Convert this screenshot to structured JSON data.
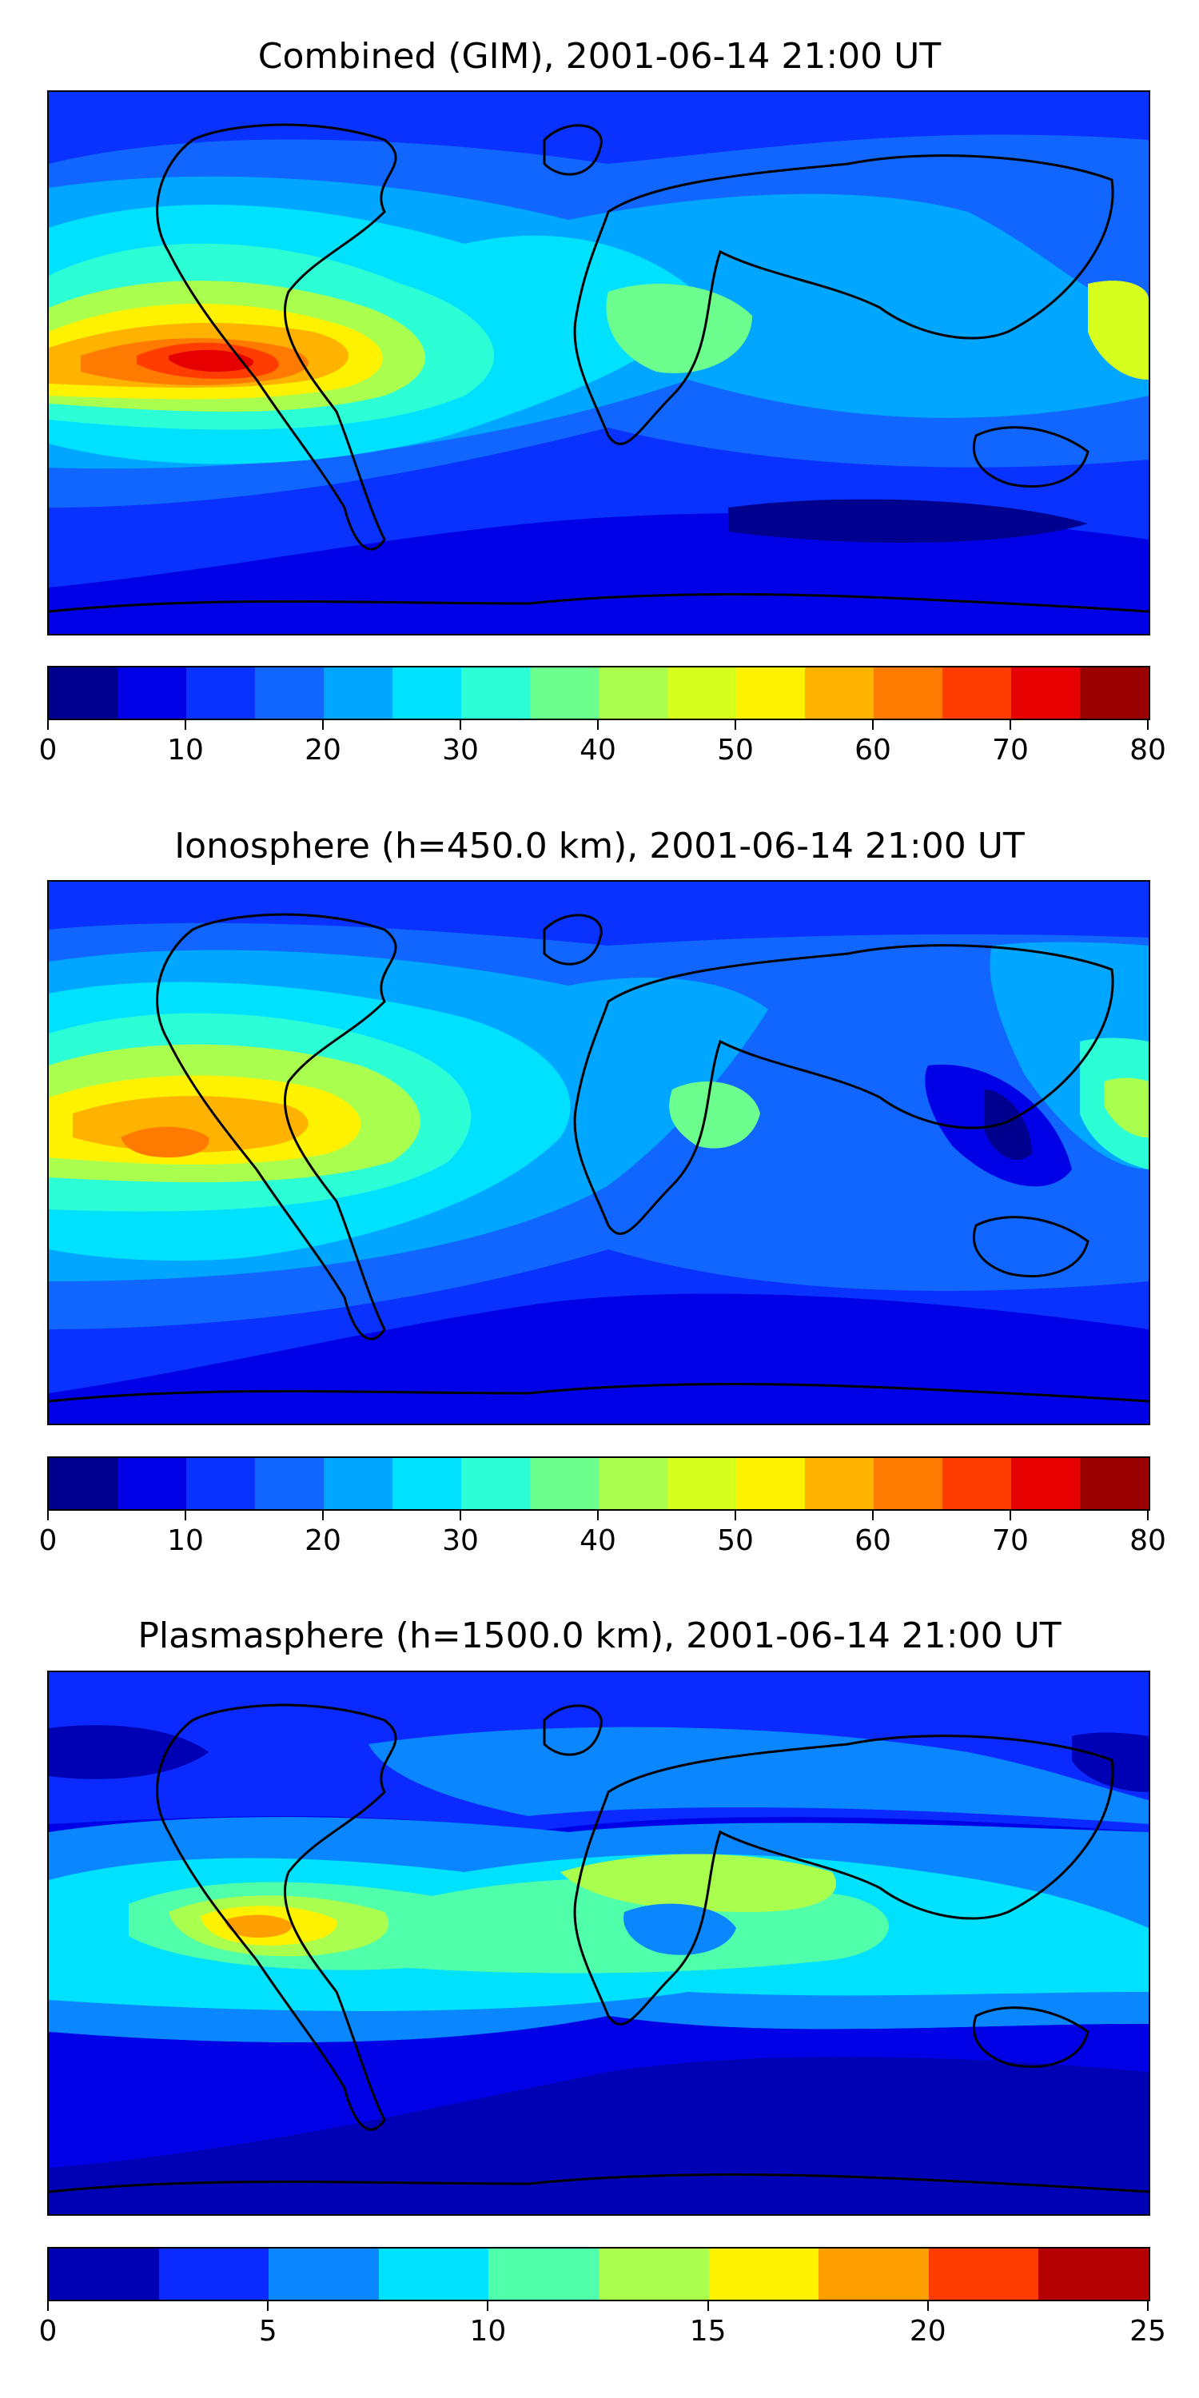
{
  "panels": [
    {
      "title": "Combined (GIM), 2001-06-14 21:00 UT",
      "map_background": "#0a32ff",
      "colorbar": {
        "min": 0,
        "max": 80,
        "colors": [
          "#00008f",
          "#0000e6",
          "#0a32ff",
          "#1066ff",
          "#00a6ff",
          "#00e1ff",
          "#2cffd6",
          "#6cff8e",
          "#aaff4e",
          "#d7ff1e",
          "#fff200",
          "#ffb300",
          "#ff7a00",
          "#ff3d00",
          "#e60000",
          "#990000"
        ],
        "ticks": [
          "0",
          "10",
          "20",
          "30",
          "40",
          "50",
          "60",
          "70",
          "80"
        ]
      }
    },
    {
      "title": "Ionosphere  (h=450.0 km), 2001-06-14 21:00 UT",
      "map_background": "#0a32ff",
      "colorbar": {
        "min": 0,
        "max": 80,
        "colors": [
          "#00008f",
          "#0000e6",
          "#0a32ff",
          "#1066ff",
          "#00a6ff",
          "#00e1ff",
          "#2cffd6",
          "#6cff8e",
          "#aaff4e",
          "#d7ff1e",
          "#fff200",
          "#ffb300",
          "#ff7a00",
          "#ff3d00",
          "#e60000",
          "#990000"
        ],
        "ticks": [
          "0",
          "10",
          "20",
          "30",
          "40",
          "50",
          "60",
          "70",
          "80"
        ]
      }
    },
    {
      "title": "Plasmasphere (h=1500.0 km), 2001-06-14 21:00 UT",
      "map_background": "#0000e6",
      "colorbar": {
        "min": 0,
        "max": 25,
        "colors": [
          "#0000b4",
          "#0a2aff",
          "#0a86ff",
          "#00e1ff",
          "#50ffaa",
          "#aaff4e",
          "#fff200",
          "#ffa000",
          "#ff3c00",
          "#b40000"
        ],
        "ticks": [
          "0",
          "5",
          "10",
          "15",
          "20",
          "25"
        ]
      }
    }
  ]
}
